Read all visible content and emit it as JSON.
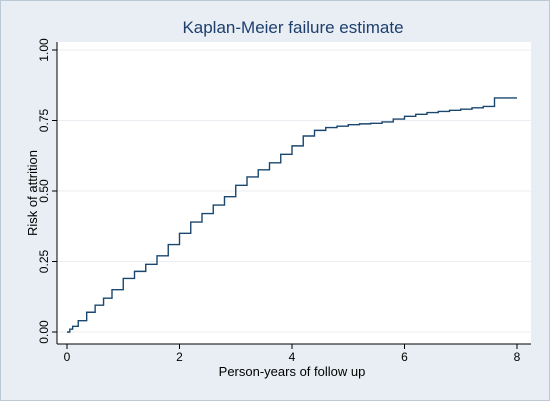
{
  "chart_data": {
    "type": "line",
    "step": true,
    "title": "Kaplan-Meier failure estimate",
    "xlabel": "Person-years of follow up",
    "ylabel": "Risk of attrition",
    "xlim": [
      0,
      8
    ],
    "ylim": [
      0,
      1
    ],
    "xticks": [
      0,
      2,
      4,
      6,
      8
    ],
    "xtick_labels": [
      "0",
      "2",
      "4",
      "6",
      "8"
    ],
    "yticks": [
      0,
      0.25,
      0.5,
      0.75,
      1
    ],
    "ytick_labels": [
      "0.00",
      "0.25",
      "0.50",
      "0.75",
      "1.00"
    ],
    "grid": true,
    "legend": "none",
    "colors": {
      "frame_fill": "#e8eef4",
      "frame_border": "#bcc8d4",
      "plot_bg": "#ffffff",
      "grid": "#eaeef2",
      "axis": "#000000",
      "line": "#1a476f",
      "title": "#1e3f6e"
    },
    "series": [
      {
        "x": [
          0.0,
          0.05,
          0.1,
          0.2,
          0.35,
          0.5,
          0.65,
          0.8,
          1.0,
          1.2,
          1.4,
          1.6,
          1.8,
          2.0,
          2.2,
          2.4,
          2.6,
          2.8,
          3.0,
          3.2,
          3.4,
          3.6,
          3.8,
          4.0,
          4.2,
          4.4,
          4.6,
          4.8,
          5.0,
          5.2,
          5.4,
          5.6,
          5.8,
          6.0,
          6.2,
          6.4,
          6.6,
          6.8,
          7.0,
          7.2,
          7.4,
          7.6,
          7.8,
          8.0
        ],
        "y": [
          0.0,
          0.01,
          0.02,
          0.04,
          0.07,
          0.095,
          0.12,
          0.15,
          0.19,
          0.215,
          0.24,
          0.27,
          0.31,
          0.35,
          0.39,
          0.42,
          0.45,
          0.48,
          0.52,
          0.55,
          0.575,
          0.6,
          0.63,
          0.66,
          0.695,
          0.715,
          0.725,
          0.73,
          0.735,
          0.738,
          0.74,
          0.745,
          0.755,
          0.765,
          0.772,
          0.778,
          0.782,
          0.786,
          0.79,
          0.795,
          0.8,
          0.83,
          0.83,
          0.83
        ]
      }
    ]
  }
}
